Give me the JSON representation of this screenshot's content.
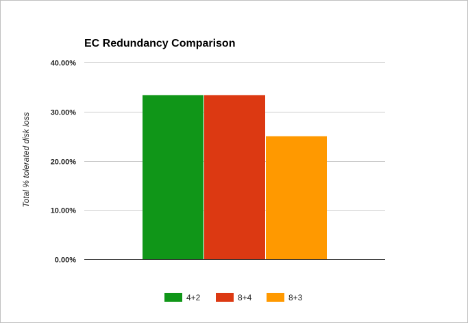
{
  "chart_data": {
    "type": "bar",
    "title": "EC Redundancy Comparison",
    "xlabel": "",
    "ylabel": "Total % tolerated disk loss",
    "ylim": [
      0,
      40
    ],
    "y_ticks": [
      "0.00%",
      "10.00%",
      "20.00%",
      "30.00%",
      "40.00%"
    ],
    "y_tick_values": [
      0,
      10,
      20,
      30,
      40
    ],
    "grid": true,
    "legend_position": "bottom",
    "series": [
      {
        "name": "4+2",
        "value": 33.33,
        "color": "#109618"
      },
      {
        "name": "8+4",
        "value": 33.33,
        "color": "#dc3912"
      },
      {
        "name": "8+3",
        "value": 25.0,
        "color": "#ff9900"
      }
    ]
  }
}
